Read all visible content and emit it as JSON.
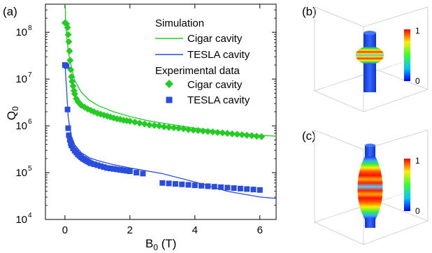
{
  "panel_labels": {
    "a": "(a)",
    "b": "(b)",
    "c": "(c)"
  },
  "colors": {
    "cigar": "#22cc22",
    "tesla": "#2a4de0",
    "axis": "#000000"
  },
  "legend": {
    "sim_header": "Simulation",
    "sim_cigar": "Cigar cavity",
    "sim_tesla": "TESLA cavity",
    "exp_header": "Experimental data",
    "exp_cigar": "Cigar cavity",
    "exp_tesla": "TESLA cavity"
  },
  "colorbar": {
    "max": "1",
    "min": "0"
  },
  "chart_data": {
    "type": "scatter",
    "xlabel": "B0 (T)",
    "ylabel": "Q0",
    "xlim": [
      -0.6,
      6.5
    ],
    "ylim_log10": [
      4,
      8.6
    ],
    "xticks": [
      0,
      2,
      4,
      6
    ],
    "yticks": [
      4,
      5,
      6,
      7,
      8
    ],
    "ytick_labels": [
      "10",
      "10",
      "10",
      "10",
      "10"
    ],
    "ytick_exponents": [
      "4",
      "5",
      "6",
      "7",
      "8"
    ],
    "series": [
      {
        "name": "Cigar cavity",
        "kind": "simulation",
        "x": [
          0.01,
          0.02,
          0.05,
          0.1,
          0.2,
          0.3,
          0.5,
          0.75,
          1,
          1.5,
          2,
          2.5,
          3,
          4,
          5,
          6,
          6.5
        ],
        "y_log10": [
          8.6,
          8.3,
          7.95,
          7.6,
          7.25,
          6.98,
          6.72,
          6.55,
          6.44,
          6.3,
          6.2,
          6.12,
          6.06,
          5.95,
          5.86,
          5.8,
          5.78
        ]
      },
      {
        "name": "TESLA cavity",
        "kind": "simulation",
        "x": [
          0.01,
          0.02,
          0.05,
          0.1,
          0.15,
          0.2,
          0.3,
          0.5,
          0.75,
          1,
          1.5,
          2,
          3,
          4,
          5,
          6,
          6.5
        ],
        "y_log10": [
          7.3,
          7.1,
          6.8,
          6.2,
          5.95,
          5.78,
          5.6,
          5.43,
          5.32,
          5.26,
          5.17,
          5.1,
          4.98,
          4.8,
          4.6,
          4.48,
          4.45
        ]
      },
      {
        "name": "Cigar cavity",
        "kind": "experimental",
        "x": [
          0.0,
          0.05,
          0.08,
          0.1,
          0.12,
          0.14,
          0.16,
          0.18,
          0.2,
          0.22,
          0.25,
          0.28,
          0.3,
          0.35,
          0.4,
          0.45,
          0.5,
          0.6,
          0.7,
          0.8,
          0.9,
          1.0,
          1.1,
          1.2,
          1.3,
          1.4,
          1.5,
          1.6,
          1.7,
          1.8,
          1.9,
          2.0,
          2.15,
          2.3,
          2.45,
          2.6,
          2.75,
          2.9,
          3.05,
          3.2,
          3.35,
          3.5,
          3.65,
          3.8,
          3.95,
          4.1,
          4.25,
          4.4,
          4.55,
          4.7,
          4.85,
          5.0,
          5.15,
          5.3,
          5.45,
          5.6,
          5.75,
          5.9,
          6.05
        ],
        "y_log10": [
          8.2,
          8.18,
          8.1,
          7.95,
          7.8,
          7.6,
          7.4,
          7.2,
          7.05,
          6.95,
          6.85,
          6.75,
          6.68,
          6.58,
          6.52,
          6.48,
          6.44,
          6.4,
          6.36,
          6.33,
          6.3,
          6.27,
          6.25,
          6.23,
          6.21,
          6.19,
          6.17,
          6.15,
          6.14,
          6.12,
          6.11,
          6.1,
          6.08,
          6.06,
          6.04,
          6.02,
          6.01,
          6.0,
          5.98,
          5.97,
          5.96,
          5.95,
          5.94,
          5.92,
          5.91,
          5.9,
          5.89,
          5.88,
          5.87,
          5.86,
          5.85,
          5.84,
          5.83,
          5.82,
          5.81,
          5.8,
          5.79,
          5.78,
          5.77
        ]
      },
      {
        "name": "TESLA cavity",
        "kind": "experimental",
        "x": [
          0.0,
          0.05,
          0.08,
          0.1,
          0.12,
          0.15,
          0.18,
          0.2,
          0.25,
          0.3,
          0.35,
          0.4,
          0.45,
          0.5,
          0.55,
          0.6,
          0.65,
          0.7,
          0.75,
          0.8,
          0.9,
          1.0,
          1.1,
          1.2,
          1.3,
          1.4,
          1.5,
          1.6,
          1.7,
          1.8,
          1.9,
          2.0,
          2.2,
          2.4,
          3.0,
          3.2,
          3.4,
          3.6,
          3.8,
          4.0,
          4.2,
          4.4,
          4.6,
          4.8,
          5.0,
          5.2,
          5.4,
          5.6,
          5.8,
          6.0
        ],
        "y_log10": [
          7.3,
          7.28,
          6.35,
          5.95,
          5.8,
          5.7,
          5.63,
          5.58,
          5.52,
          5.47,
          5.43,
          5.39,
          5.36,
          5.33,
          5.3,
          5.28,
          5.26,
          5.24,
          5.22,
          5.2,
          5.18,
          5.16,
          5.14,
          5.12,
          5.1,
          5.09,
          5.08,
          5.07,
          5.06,
          5.05,
          5.04,
          5.03,
          5.0,
          4.98,
          4.78,
          4.77,
          4.76,
          4.75,
          4.74,
          4.73,
          4.72,
          4.71,
          4.7,
          4.69,
          4.68,
          4.67,
          4.66,
          4.65,
          4.64,
          4.63
        ]
      }
    ]
  }
}
